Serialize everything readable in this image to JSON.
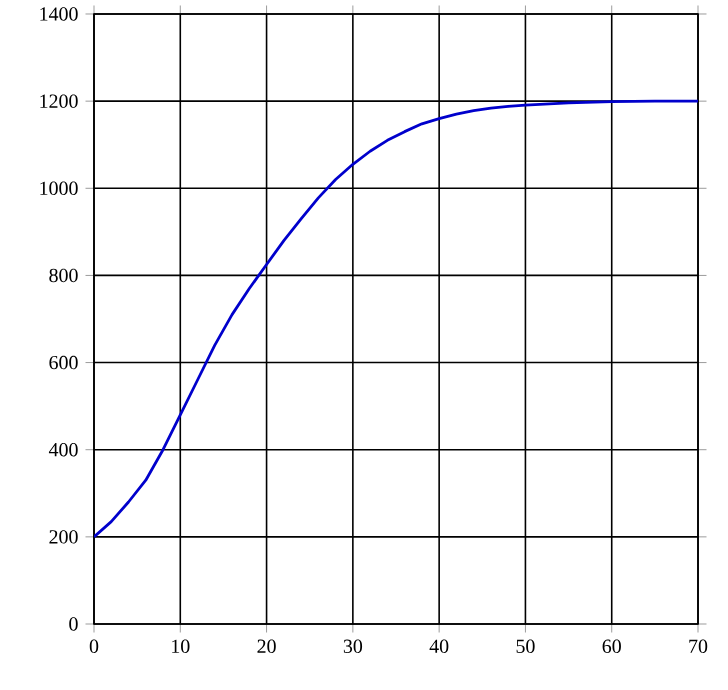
{
  "chart_data": {
    "type": "line",
    "x": [
      0,
      2,
      4,
      6,
      8,
      10,
      12,
      14,
      16,
      18,
      20,
      22,
      24,
      26,
      28,
      30,
      32,
      34,
      36,
      38,
      40,
      42,
      44,
      46,
      48,
      50,
      55,
      60,
      65,
      70
    ],
    "values": [
      200,
      235,
      280,
      330,
      400,
      480,
      560,
      640,
      710,
      770,
      825,
      880,
      930,
      978,
      1020,
      1055,
      1085,
      1110,
      1130,
      1148,
      1160,
      1170,
      1178,
      1184,
      1188,
      1191,
      1196,
      1199,
      1200,
      1200
    ],
    "color": "#0000cc",
    "xlim": [
      0,
      70
    ],
    "ylim": [
      0,
      1400
    ],
    "xticks": [
      0,
      10,
      20,
      30,
      40,
      50,
      60,
      70
    ],
    "yticks": [
      0,
      200,
      400,
      600,
      800,
      1000,
      1200,
      1400
    ],
    "grid": true,
    "marker": "none",
    "line_style": "solid"
  }
}
